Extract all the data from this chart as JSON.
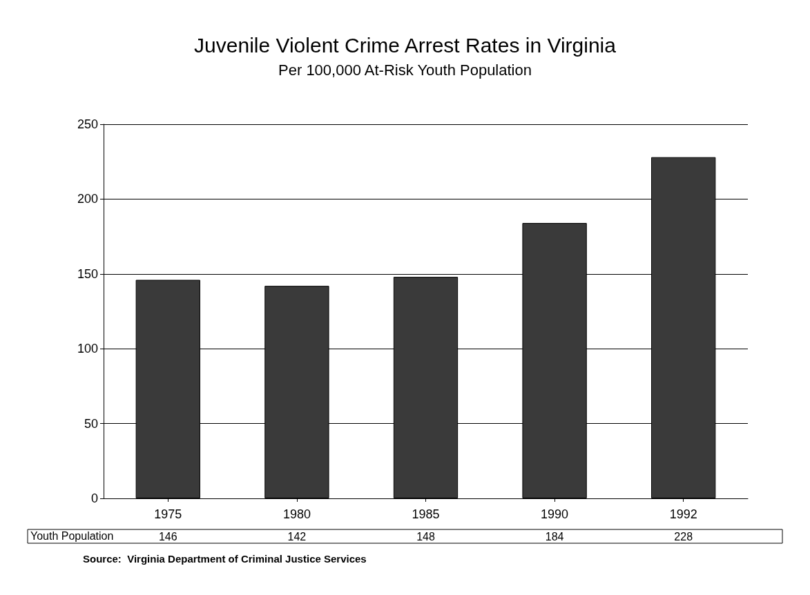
{
  "chart_data": {
    "type": "bar",
    "title": "Juvenile Violent Crime Arrest Rates in Virginia",
    "subtitle": "Per 100,000 At-Risk Youth Population",
    "categories": [
      "1975",
      "1980",
      "1985",
      "1990",
      "1992"
    ],
    "series": [
      {
        "name": "Youth Population",
        "color": "#3a3a3a",
        "values": [
          146,
          142,
          148,
          184,
          228
        ]
      }
    ],
    "ylim": [
      0,
      250
    ],
    "yticks": [
      0,
      50,
      100,
      150,
      200,
      250
    ],
    "grid": "y",
    "data_labels": true,
    "annotations": [
      "Source:  Virginia Department of Criminal Justice Services"
    ]
  }
}
